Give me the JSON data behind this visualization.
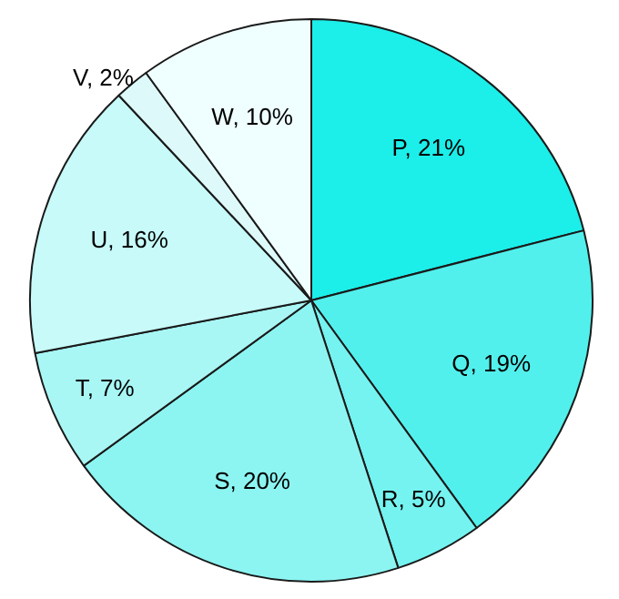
{
  "chart_data": {
    "type": "pie",
    "categories": [
      "P",
      "Q",
      "R",
      "S",
      "T",
      "U",
      "V",
      "W"
    ],
    "values": [
      21,
      19,
      5,
      20,
      7,
      16,
      2,
      10
    ],
    "colors": [
      "#1ceee9",
      "#52f0ec",
      "#75f3f0",
      "#8cf5f2",
      "#a8f7f5",
      "#c7faf9",
      "#def9f9",
      "#effefe"
    ],
    "value_labels": [
      "21%",
      "19%",
      "5%",
      "20%",
      "7%",
      "16%",
      "2%",
      "10%"
    ],
    "legend": false
  }
}
